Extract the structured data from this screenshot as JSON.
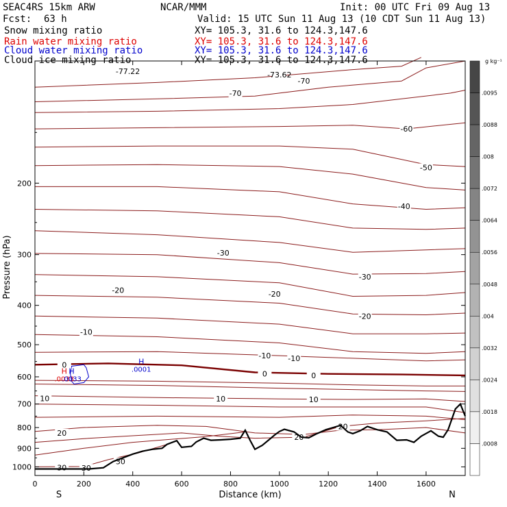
{
  "header": {
    "model": "SEAC4RS 15km ARW",
    "center": "NCAR/MMM",
    "init": "Init: 00 UTC Fri 09 Aug 13",
    "fcst_label": "Fcst:",
    "fcst_value": "63 h",
    "valid": "Valid: 15 UTC Sun 11 Aug 13 (10 CDT Sun 11 Aug 13)",
    "fields": [
      {
        "name": "Snow mixing ratio",
        "xy": "XY= 105.3, 31.6 to 124.3,147.6",
        "color": "#000000"
      },
      {
        "name": "Rain water mixing ratio",
        "xy": "XY= 105.3, 31.6 to 124.3,147.6",
        "color": "#dd0000"
      },
      {
        "name": "Cloud water mixing ratio",
        "xy": "XY= 105.3, 31.6 to 124.3,147.6",
        "color": "#0000cc"
      },
      {
        "name": "Cloud ice mixing ratio",
        "xy": "XY= 105.3, 31.6 to 124.3,147.6",
        "color": "#000000"
      }
    ]
  },
  "chart_data": {
    "type": "line",
    "xlabel": "Distance (km)",
    "ylabel": "Pressure (hPa)",
    "x_ticks": [
      0,
      200,
      400,
      600,
      800,
      1000,
      1200,
      1400,
      1600
    ],
    "xlim": [
      0,
      1760
    ],
    "y_ticks": [
      200,
      300,
      400,
      500,
      600,
      700,
      800,
      900,
      1000
    ],
    "ylim": [
      1050,
      100
    ],
    "y_scale": "log",
    "end_labels": {
      "left": "S",
      "right": "N"
    },
    "colorbar": {
      "unit": "g kg⁻¹",
      "labels": [
        ".0095",
        ".0088",
        ".008",
        ".0072",
        ".0064",
        ".0056",
        ".0048",
        ".004",
        ".0032",
        ".0024",
        ".0018",
        ".0008"
      ]
    },
    "isotherm_labels": [
      {
        "text": "-77.22",
        "x": 380,
        "p": 106
      },
      {
        "text": "-73.62",
        "x": 1000,
        "p": 108
      },
      {
        "text": "-70",
        "x": 820,
        "p": 120
      },
      {
        "text": "-70",
        "x": 1100,
        "p": 112
      },
      {
        "text": "-60",
        "x": 1520,
        "p": 147
      },
      {
        "text": "-50",
        "x": 1600,
        "p": 183
      },
      {
        "text": "-40",
        "x": 1510,
        "p": 228
      },
      {
        "text": "-30",
        "x": 770,
        "p": 297
      },
      {
        "text": "-30",
        "x": 1350,
        "p": 340
      },
      {
        "text": "-20",
        "x": 340,
        "p": 367
      },
      {
        "text": "-20",
        "x": 980,
        "p": 375
      },
      {
        "text": "-20",
        "x": 1350,
        "p": 425
      },
      {
        "text": "-10",
        "x": 210,
        "p": 465
      },
      {
        "text": "-10",
        "x": 940,
        "p": 532
      },
      {
        "text": "-10",
        "x": 1060,
        "p": 540
      },
      {
        "text": "0",
        "x": 120,
        "p": 560
      },
      {
        "text": "0",
        "x": 940,
        "p": 590
      },
      {
        "text": "0",
        "x": 1140,
        "p": 595
      },
      {
        "text": "10",
        "x": 40,
        "p": 678
      },
      {
        "text": "10",
        "x": 760,
        "p": 680
      },
      {
        "text": "10",
        "x": 1140,
        "p": 682
      },
      {
        "text": "20",
        "x": 110,
        "p": 825
      },
      {
        "text": "20",
        "x": 1080,
        "p": 845
      },
      {
        "text": "20",
        "x": 1260,
        "p": 795
      },
      {
        "text": "30",
        "x": 110,
        "p": 1005
      },
      {
        "text": "30",
        "x": 210,
        "p": 1007
      },
      {
        "text": "30",
        "x": 350,
        "p": 970
      }
    ],
    "markers": [
      {
        "symbol": "H",
        "value": ".0001",
        "x": 435,
        "p": 558,
        "color": "#0000cc"
      },
      {
        "symbol": "H",
        "value": ".0033",
        "x": 120,
        "p": 590,
        "color": "#dd0000"
      },
      {
        "symbol": "H",
        "value": ".0033",
        "x": 150,
        "p": 590,
        "color": "#0000cc"
      }
    ],
    "terrain": [
      [
        0,
        1012
      ],
      [
        100,
        1012
      ],
      [
        220,
        1012
      ],
      [
        280,
        1005
      ],
      [
        320,
        970
      ],
      [
        360,
        950
      ],
      [
        400,
        930
      ],
      [
        440,
        915
      ],
      [
        480,
        905
      ],
      [
        520,
        900
      ],
      [
        540,
        880
      ],
      [
        580,
        862
      ],
      [
        600,
        895
      ],
      [
        640,
        890
      ],
      [
        660,
        868
      ],
      [
        690,
        850
      ],
      [
        720,
        860
      ],
      [
        760,
        858
      ],
      [
        800,
        855
      ],
      [
        840,
        850
      ],
      [
        860,
        812
      ],
      [
        880,
        860
      ],
      [
        900,
        905
      ],
      [
        930,
        885
      ],
      [
        960,
        855
      ],
      [
        980,
        835
      ],
      [
        1000,
        818
      ],
      [
        1020,
        808
      ],
      [
        1060,
        820
      ],
      [
        1090,
        845
      ],
      [
        1120,
        848
      ],
      [
        1150,
        830
      ],
      [
        1190,
        810
      ],
      [
        1220,
        800
      ],
      [
        1250,
        790
      ],
      [
        1280,
        820
      ],
      [
        1300,
        828
      ],
      [
        1330,
        815
      ],
      [
        1360,
        795
      ],
      [
        1400,
        810
      ],
      [
        1440,
        820
      ],
      [
        1480,
        860
      ],
      [
        1520,
        858
      ],
      [
        1550,
        870
      ],
      [
        1580,
        840
      ],
      [
        1620,
        815
      ],
      [
        1650,
        840
      ],
      [
        1670,
        845
      ],
      [
        1690,
        810
      ],
      [
        1720,
        720
      ],
      [
        1740,
        700
      ],
      [
        1760,
        750
      ]
    ]
  }
}
